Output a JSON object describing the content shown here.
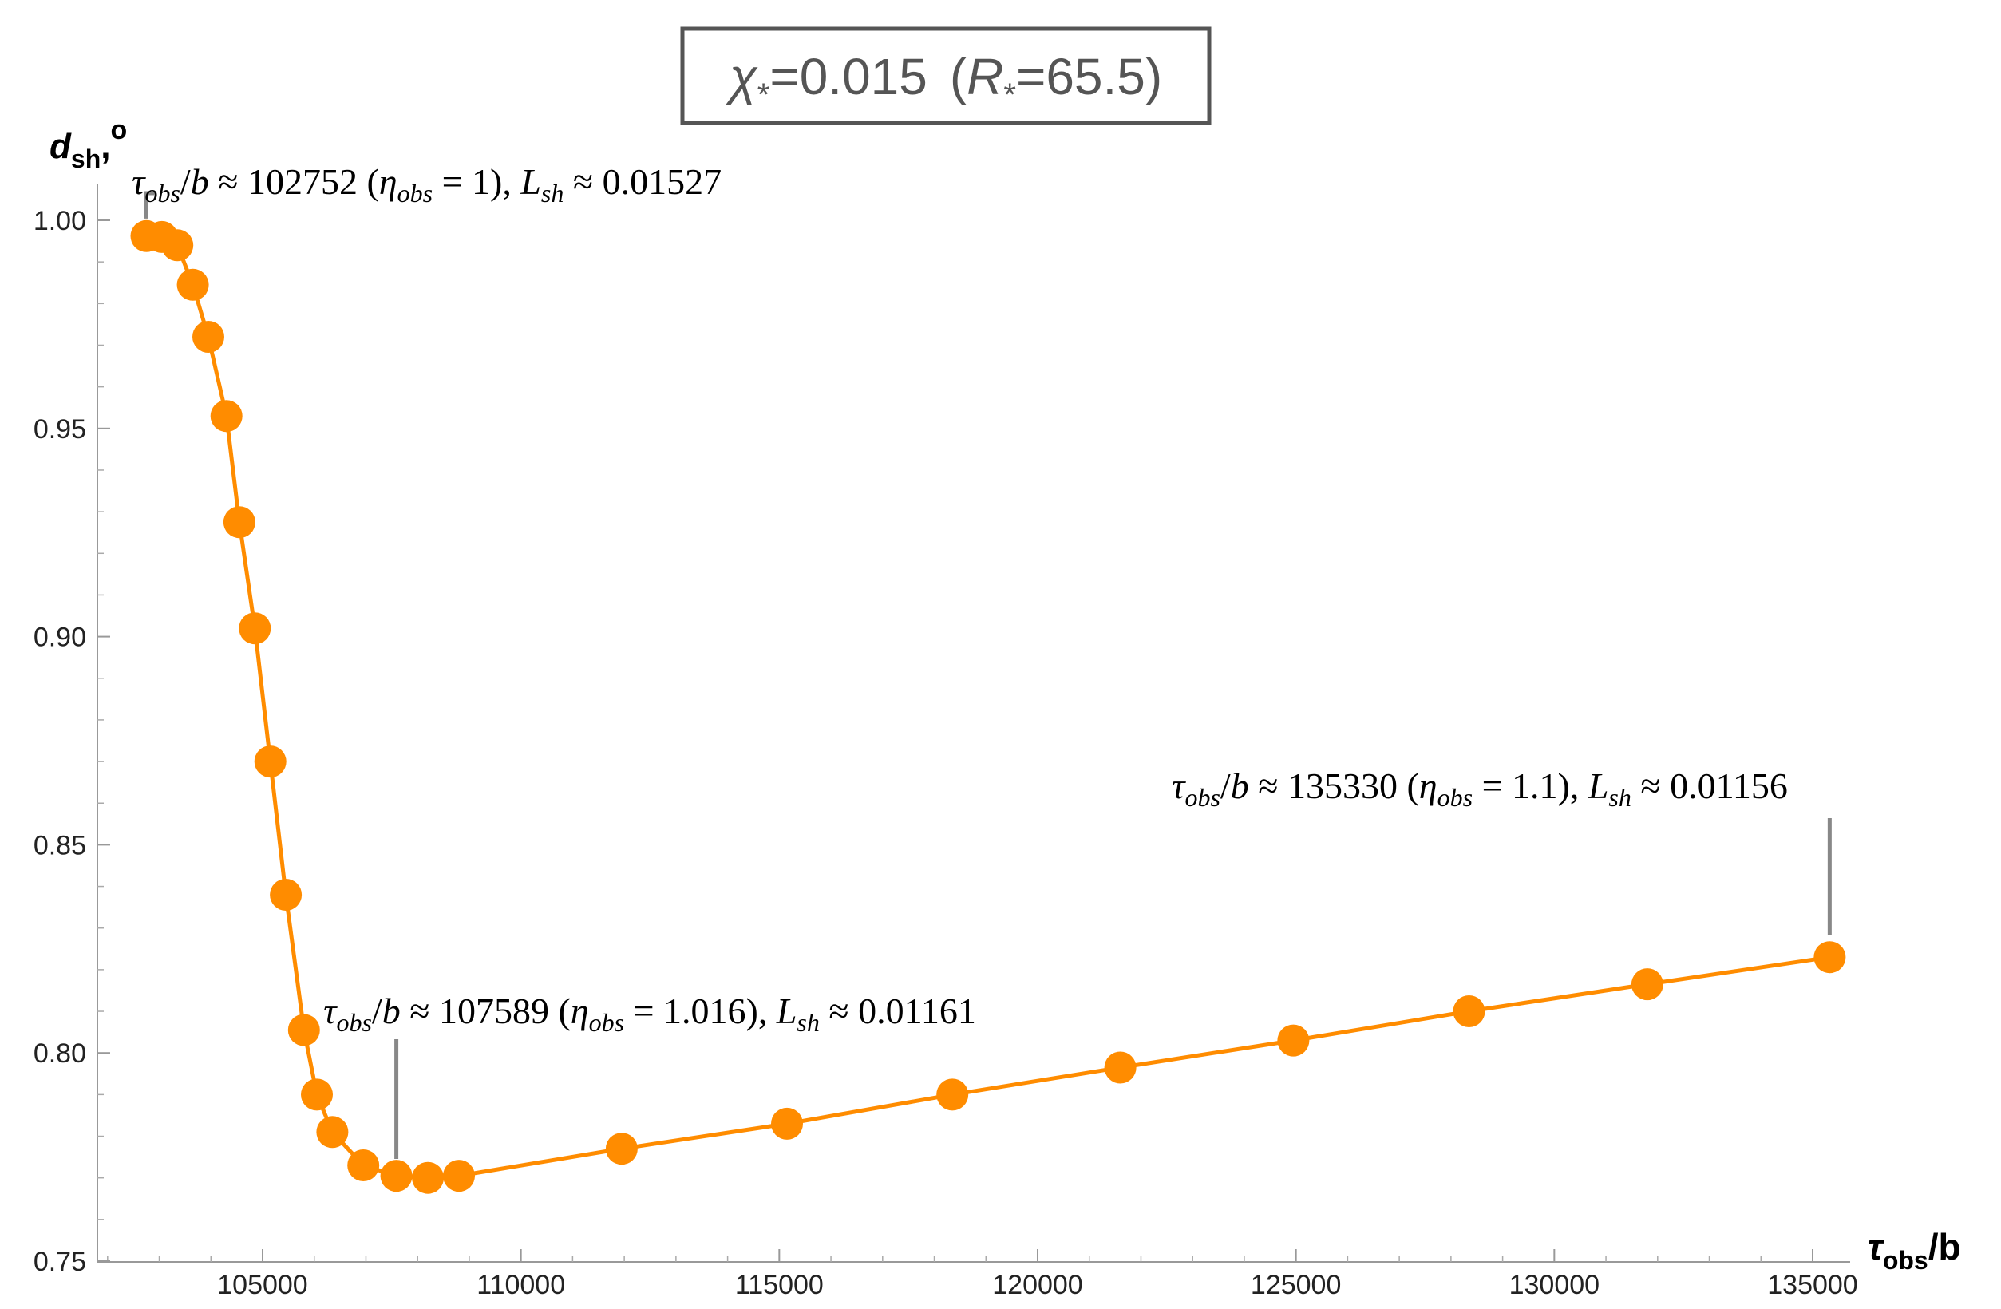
{
  "chart_data": {
    "type": "line",
    "title_parts": {
      "chi": "χ",
      "chi_sub": "*",
      "chi_eq": "=0.015",
      "open": "(",
      "r": "R",
      "r_sub": "*",
      "r_eq": "=65.5",
      "close": ")"
    },
    "ylabel": {
      "main": "d",
      "sub": "sh",
      "suffix": ",",
      "sup": "o"
    },
    "xlabel": {
      "main": "τ",
      "sub": "obs",
      "suffix": "/b"
    },
    "xlim": [
      101800,
      136000
    ],
    "ylim": [
      0.75,
      1.0
    ],
    "x_ticks": [
      105000,
      110000,
      115000,
      120000,
      125000,
      130000,
      135000
    ],
    "x_tick_labels": [
      "105000",
      "110000",
      "115000",
      "120000",
      "125000",
      "130000",
      "135000"
    ],
    "y_ticks": [
      0.75,
      0.8,
      0.85,
      0.9,
      0.95,
      1.0
    ],
    "y_tick_labels": [
      "0.75",
      "0.80",
      "0.85",
      "0.90",
      "0.95",
      "1.00"
    ],
    "line_color": "#FF8C00",
    "leader_color": "#888888",
    "title_box_color": "#555555",
    "series": [
      {
        "x": [
          102752,
          103050,
          103350,
          103650,
          103950,
          104300,
          104550,
          104850,
          105150,
          105450,
          105800,
          106050,
          106350,
          106950,
          107589,
          108200,
          108800,
          111950,
          115150,
          118350,
          121600,
          124950,
          128350,
          131800,
          135330
        ],
        "y": [
          0.9962,
          0.996,
          0.994,
          0.9845,
          0.972,
          0.953,
          0.9275,
          0.902,
          0.87,
          0.838,
          0.8055,
          0.79,
          0.781,
          0.773,
          0.7705,
          0.77,
          0.7705,
          0.777,
          0.783,
          0.79,
          0.7965,
          0.803,
          0.81,
          0.8165,
          0.823
        ]
      }
    ],
    "annotations": [
      {
        "parts": [
          {
            "t": "τ",
            "i": true
          },
          {
            "t": "obs",
            "sub": true,
            "i": true
          },
          {
            "t": "/"
          },
          {
            "t": "b",
            "i": true
          },
          {
            "t": " ≈ 102752 ("
          },
          {
            "t": "η",
            "i": true
          },
          {
            "t": "obs",
            "sub": true,
            "i": true
          },
          {
            "t": " = 1), "
          },
          {
            "t": "L",
            "i": true
          },
          {
            "t": "sh",
            "sub": true,
            "i": true
          },
          {
            "t": " ≈ 0.01527"
          }
        ]
      },
      {
        "parts": [
          {
            "t": "τ",
            "i": true
          },
          {
            "t": "obs",
            "sub": true,
            "i": true
          },
          {
            "t": "/"
          },
          {
            "t": "b",
            "i": true
          },
          {
            "t": " ≈ 107589 ("
          },
          {
            "t": "η",
            "i": true
          },
          {
            "t": "obs",
            "sub": true,
            "i": true
          },
          {
            "t": " = 1.016), "
          },
          {
            "t": "L",
            "i": true
          },
          {
            "t": "sh",
            "sub": true,
            "i": true
          },
          {
            "t": " ≈ 0.01161"
          }
        ]
      },
      {
        "parts": [
          {
            "t": "τ",
            "i": true
          },
          {
            "t": "obs",
            "sub": true,
            "i": true
          },
          {
            "t": "/"
          },
          {
            "t": "b",
            "i": true
          },
          {
            "t": " ≈ 135330 ("
          },
          {
            "t": "η",
            "i": true
          },
          {
            "t": "obs",
            "sub": true,
            "i": true
          },
          {
            "t": " = 1.1), "
          },
          {
            "t": "L",
            "i": true
          },
          {
            "t": "sh",
            "sub": true,
            "i": true
          },
          {
            "t": "  ≈  0.01156"
          }
        ]
      }
    ]
  }
}
